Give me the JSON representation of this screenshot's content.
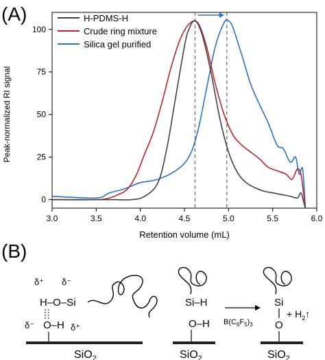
{
  "panel_a": {
    "label": "(A)",
    "chart_data": {
      "type": "line",
      "xlabel": "Retention volume (mL)",
      "ylabel": "Peak-normalized RI signal",
      "xlim": [
        3.0,
        6.0
      ],
      "ylim": [
        -5,
        110
      ],
      "xticks": [
        "3.0",
        "3.5",
        "4.0",
        "4.5",
        "5.0",
        "5.5",
        "6.0"
      ],
      "yticks": [
        "0",
        "25",
        "50",
        "75",
        "100"
      ],
      "legend_position": "top-left",
      "guides": [
        4.62,
        4.98
      ],
      "series": [
        {
          "name": "H-PDMS-H",
          "color": "#404040",
          "x": [
            3.0,
            3.5,
            3.7,
            3.9,
            4.05,
            4.2,
            4.3,
            4.4,
            4.5,
            4.55,
            4.62,
            4.7,
            4.8,
            4.9,
            5.0,
            5.1,
            5.2,
            5.3,
            5.4,
            5.5,
            5.6,
            5.7,
            5.78,
            5.82,
            5.85,
            5.87
          ],
          "y": [
            0,
            0,
            0,
            0,
            2,
            10,
            30,
            60,
            90,
            100,
            105,
            97,
            75,
            48,
            28,
            16,
            10,
            7,
            5,
            4,
            3,
            2,
            1,
            4,
            -1,
            -5
          ]
        },
        {
          "name": "Crude ring mixture",
          "color": "#c0202a",
          "x": [
            3.0,
            3.5,
            3.65,
            3.75,
            3.85,
            3.95,
            4.05,
            4.15,
            4.25,
            4.35,
            4.45,
            4.55,
            4.65,
            4.75,
            4.85,
            4.95,
            5.05,
            5.15,
            5.25,
            5.35,
            5.45,
            5.55,
            5.65,
            5.72,
            5.78,
            5.82,
            5.85,
            5.87
          ],
          "y": [
            0,
            0,
            1,
            3,
            6,
            14,
            27,
            40,
            58,
            78,
            94,
            103,
            104,
            90,
            68,
            50,
            38,
            32,
            28,
            24,
            19,
            17,
            15,
            12,
            18,
            15,
            4,
            -5
          ]
        },
        {
          "name": "Silica gel purified",
          "color": "#2a6fc9",
          "x": [
            3.0,
            3.5,
            3.65,
            3.8,
            3.9,
            4.0,
            4.2,
            4.4,
            4.55,
            4.65,
            4.75,
            4.85,
            4.95,
            5.0,
            5.05,
            5.15,
            5.25,
            5.35,
            5.45,
            5.55,
            5.62,
            5.7,
            5.76,
            5.8,
            5.84,
            5.87
          ],
          "y": [
            2,
            1,
            4,
            6,
            8,
            10,
            12,
            17,
            25,
            40,
            65,
            90,
            104,
            105,
            101,
            85,
            68,
            56,
            45,
            32,
            30,
            22,
            25,
            15,
            18,
            -5
          ]
        }
      ]
    }
  },
  "panel_b": {
    "label": "(B)",
    "left": {
      "delta_plus_1": "δ⁺",
      "delta_minus_1": "δ⁻",
      "row1": "H–O–Si",
      "delta_minus_2": "δ⁻",
      "row2": "O–H",
      "delta_plus_2": "δ⁺",
      "substrate": "SiO",
      "substrate_sub": "2"
    },
    "middle": {
      "si_h": "Si–H",
      "o_h": "O–H",
      "substrate": "SiO",
      "substrate_sub": "2"
    },
    "arrow_label": "B(C",
    "arrow_sub1": "6",
    "arrow_mid": "F",
    "arrow_sub2": "5",
    "arrow_end": ")",
    "arrow_sub3": "3",
    "right": {
      "si": "Si",
      "o": "O",
      "byproduct": "+ H",
      "byproduct_sub": "2",
      "byproduct_arrow": "↑",
      "substrate": "SiO",
      "substrate_sub": "2"
    }
  }
}
